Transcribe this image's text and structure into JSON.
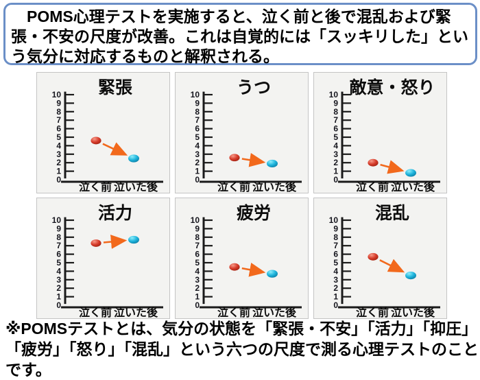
{
  "top_box": {
    "text": "　POMS心理テストを実施すると、泣く前と後で混乱および緊張・不安の尺度が改善。これは自覚的には「スッキリした」という気分に対応するものと解釈される。",
    "border_color": "#6b8fc7"
  },
  "footnote": {
    "text": "※POMSテストとは、気分の状態を「緊張・不安」「活力」「抑圧」「疲労」「怒り」「混乱」という六つの尺度で測る心理テストのことです。"
  },
  "chart_style": {
    "before_color": "#d63b2a",
    "before_highlight": "#f79b8a",
    "before_edge": "#9e2212",
    "after_color": "#1fb4dc",
    "after_highlight": "#8feefb",
    "after_edge": "#0c7fa6",
    "arrow_color": "#f2691c",
    "axis_color": "#1a1a1a",
    "panel_bg": "#f3f3f1",
    "panel_border": "#c4c4c4",
    "legend_position": "none",
    "grid": false
  },
  "chart_data": [
    {
      "type": "scatter",
      "title": "緊張",
      "categories": [
        "泣く前",
        "泣いた後"
      ],
      "values": [
        4.6,
        2.5
      ],
      "ylim": [
        0,
        10
      ],
      "yticks": [
        0,
        1,
        2,
        3,
        4,
        5,
        6,
        7,
        8,
        9,
        10
      ],
      "annotation": "arrow-before-to-after"
    },
    {
      "type": "scatter",
      "title": "うつ",
      "categories": [
        "泣く前",
        "泣いた後"
      ],
      "values": [
        2.6,
        1.9
      ],
      "ylim": [
        0,
        10
      ],
      "yticks": [
        0,
        1,
        2,
        3,
        4,
        5,
        6,
        7,
        8,
        9,
        10
      ],
      "annotation": "arrow-before-to-after"
    },
    {
      "type": "scatter",
      "title": "敵意・怒り",
      "categories": [
        "泣く前",
        "泣いた後"
      ],
      "values": [
        2.0,
        0.8
      ],
      "ylim": [
        0,
        10
      ],
      "yticks": [
        0,
        1,
        2,
        3,
        4,
        5,
        6,
        7,
        8,
        9,
        10
      ],
      "annotation": "arrow-before-to-after"
    },
    {
      "type": "scatter",
      "title": "活力",
      "categories": [
        "泣く前",
        "泣いた後"
      ],
      "values": [
        7.3,
        7.7
      ],
      "ylim": [
        0,
        10
      ],
      "yticks": [
        0,
        1,
        2,
        3,
        4,
        5,
        6,
        7,
        8,
        9,
        10
      ],
      "annotation": "arrow-before-to-after"
    },
    {
      "type": "scatter",
      "title": "疲労",
      "categories": [
        "泣く前",
        "泣いた後"
      ],
      "values": [
        4.5,
        3.7
      ],
      "ylim": [
        0,
        10
      ],
      "yticks": [
        0,
        1,
        2,
        3,
        4,
        5,
        6,
        7,
        8,
        9,
        10
      ],
      "annotation": "arrow-before-to-after"
    },
    {
      "type": "scatter",
      "title": "混乱",
      "categories": [
        "泣く前",
        "泣いた後"
      ],
      "values": [
        5.7,
        3.5
      ],
      "ylim": [
        0,
        10
      ],
      "yticks": [
        0,
        1,
        2,
        3,
        4,
        5,
        6,
        7,
        8,
        9,
        10
      ],
      "annotation": "arrow-before-to-after"
    }
  ]
}
